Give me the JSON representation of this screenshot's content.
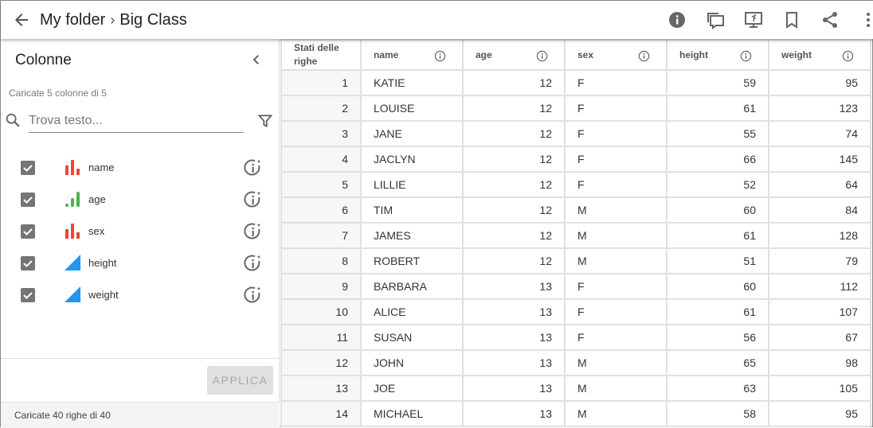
{
  "header": {
    "breadcrumb": [
      "My folder",
      "Big Class"
    ]
  },
  "icons": [
    "back-arrow-icon",
    "info-icon",
    "comments-icon",
    "presentation-icon",
    "bookmark-icon",
    "share-icon",
    "more-vert-icon"
  ],
  "sidebar": {
    "title": "Colonne",
    "loaded": "Caricate 5 colonne di 5",
    "search_placeholder": "Trova testo...",
    "columns": [
      {
        "name": "name",
        "type": "nominal",
        "color": "#f44336"
      },
      {
        "name": "age",
        "type": "ordinal",
        "color": "#4caf50"
      },
      {
        "name": "sex",
        "type": "nominal",
        "color": "#f44336"
      },
      {
        "name": "height",
        "type": "continuous",
        "color": "#2196f3"
      },
      {
        "name": "weight",
        "type": "continuous",
        "color": "#2196f3"
      }
    ],
    "apply_label": "APPLICA",
    "footer": "Caricate 40 righe di 40"
  },
  "table": {
    "headers": [
      "Stati delle righe",
      "name",
      "age",
      "sex",
      "height",
      "weight"
    ],
    "rows": [
      [
        "1",
        "KATIE",
        "12",
        "F",
        "59",
        "95"
      ],
      [
        "2",
        "LOUISE",
        "12",
        "F",
        "61",
        "123"
      ],
      [
        "3",
        "JANE",
        "12",
        "F",
        "55",
        "74"
      ],
      [
        "4",
        "JACLYN",
        "12",
        "F",
        "66",
        "145"
      ],
      [
        "5",
        "LILLIE",
        "12",
        "F",
        "52",
        "64"
      ],
      [
        "6",
        "TIM",
        "12",
        "M",
        "60",
        "84"
      ],
      [
        "7",
        "JAMES",
        "12",
        "M",
        "61",
        "128"
      ],
      [
        "8",
        "ROBERT",
        "12",
        "M",
        "51",
        "79"
      ],
      [
        "9",
        "BARBARA",
        "13",
        "F",
        "60",
        "112"
      ],
      [
        "10",
        "ALICE",
        "13",
        "F",
        "61",
        "107"
      ],
      [
        "11",
        "SUSAN",
        "13",
        "F",
        "56",
        "67"
      ],
      [
        "12",
        "JOHN",
        "13",
        "M",
        "65",
        "98"
      ],
      [
        "13",
        "JOE",
        "13",
        "M",
        "63",
        "105"
      ],
      [
        "14",
        "MICHAEL",
        "13",
        "M",
        "58",
        "95"
      ]
    ]
  }
}
